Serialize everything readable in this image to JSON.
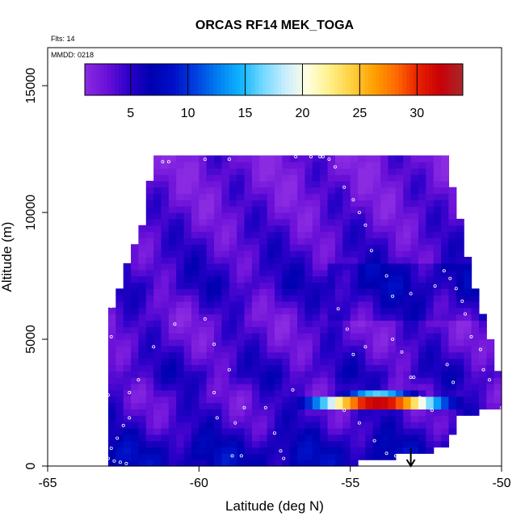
{
  "chart_data": {
    "type": "heatmap",
    "title": "ORCAS RF14 MEK_TOGA",
    "flights_label": "Flts: 14",
    "date_label": "MMDD: 0218",
    "xlabel": "Latitude (deg N)",
    "ylabel": "Altitude (m)",
    "xlim": [
      -65,
      -50
    ],
    "ylim": [
      0,
      16500
    ],
    "x_ticks": [
      -65,
      -60,
      -55,
      -50
    ],
    "x_tick_labels": [
      "-65",
      "-60",
      "-55",
      "-50"
    ],
    "y_ticks": [
      0,
      5000,
      10000,
      15000
    ],
    "y_tick_labels": [
      "0",
      "5000",
      "10000",
      "15000"
    ],
    "colorbar": {
      "range": [
        1,
        34
      ],
      "ticks": [
        5,
        10,
        15,
        20,
        25,
        30
      ],
      "tick_labels": [
        "5",
        "10",
        "15",
        "20",
        "25",
        "30"
      ],
      "colors": [
        "#8a2be2",
        "#6a10d8",
        "#2a00c8",
        "#0000b0",
        "#0010c8",
        "#0040e0",
        "#0080f0",
        "#10b4ff",
        "#70d8ff",
        "#c8ecff",
        "#ffffe0",
        "#fff08a",
        "#ffd040",
        "#ffa000",
        "#ff6a00",
        "#e82000",
        "#c80008",
        "#a82828"
      ]
    },
    "grid": false,
    "field": {
      "columns": [
        {
          "lat": -63.0,
          "bottom": 0,
          "top": 6400
        },
        {
          "lat": -62.5,
          "bottom": 0,
          "top": 8000
        },
        {
          "lat": -62.0,
          "bottom": 0,
          "top": 9500
        },
        {
          "lat": -61.6,
          "bottom": 0,
          "top": 12300
        },
        {
          "lat": -55.0,
          "bottom": 0,
          "top": 12300
        },
        {
          "lat": -52.0,
          "bottom": 600,
          "top": 12400
        },
        {
          "lat": -51.5,
          "bottom": 1800,
          "top": 9800
        },
        {
          "lat": -51.0,
          "bottom": 2000,
          "top": 7000
        },
        {
          "lat": -50.5,
          "bottom": 2100,
          "top": 5000
        },
        {
          "lat": -50.0,
          "bottom": 2200,
          "top": 2500
        }
      ],
      "bands": [
        {
          "alt": 11500,
          "value": 2.5
        },
        {
          "alt": 10000,
          "value": 3
        },
        {
          "alt": 8500,
          "value": 4
        },
        {
          "alt": 7000,
          "value": 5
        },
        {
          "alt": 5700,
          "value": 3
        },
        {
          "alt": 4700,
          "value": 3.5
        },
        {
          "alt": 3500,
          "value": 5
        },
        {
          "alt": 2600,
          "value": 3.5
        },
        {
          "alt": 1500,
          "value": 4.5
        },
        {
          "alt": 400,
          "value": 7
        }
      ],
      "hot_layer": {
        "alt_from": 2100,
        "alt_to": 2800,
        "lat_from": -57.0,
        "lat_to": -50.0,
        "peak_lat": -54.2,
        "peak_value": 32
      }
    },
    "track_points": [
      [
        -61.8,
        12000
      ],
      [
        -61.6,
        12000
      ],
      [
        -61.2,
        12000
      ],
      [
        -61.0,
        12000
      ],
      [
        -59.8,
        12100
      ],
      [
        -59.0,
        12100
      ],
      [
        -56.8,
        12200
      ],
      [
        -56.3,
        12200
      ],
      [
        -56.0,
        12200
      ],
      [
        -55.9,
        12200
      ],
      [
        -55.7,
        12100
      ],
      [
        -55.5,
        11800
      ],
      [
        -55.2,
        11000
      ],
      [
        -54.9,
        10500
      ],
      [
        -54.7,
        10000
      ],
      [
        -54.5,
        9500
      ],
      [
        -54.3,
        8500
      ],
      [
        -53.8,
        7500
      ],
      [
        -53.6,
        6700
      ],
      [
        -53.0,
        6800
      ],
      [
        -52.2,
        7100
      ],
      [
        -51.9,
        7700
      ],
      [
        -51.7,
        7400
      ],
      [
        -51.5,
        7000
      ],
      [
        -51.3,
        6500
      ],
      [
        -51.2,
        6000
      ],
      [
        -51.0,
        5100
      ],
      [
        -50.7,
        4600
      ],
      [
        -50.6,
        3800
      ],
      [
        -50.4,
        3400
      ],
      [
        -50.0,
        2300
      ],
      [
        -52.3,
        2200
      ],
      [
        -53.0,
        3500
      ],
      [
        -53.3,
        4500
      ],
      [
        -53.6,
        5000
      ],
      [
        -54.5,
        4700
      ],
      [
        -54.9,
        4400
      ],
      [
        -55.1,
        5400
      ],
      [
        -55.4,
        6200
      ],
      [
        -55.2,
        2200
      ],
      [
        -54.7,
        1700
      ],
      [
        -54.2,
        1000
      ],
      [
        -53.8,
        500
      ],
      [
        -53.5,
        400
      ],
      [
        -53.3,
        400
      ],
      [
        -53.1,
        400
      ],
      [
        -57.5,
        1300
      ],
      [
        -57.3,
        600
      ],
      [
        -57.8,
        2300
      ],
      [
        -58.5,
        2300
      ],
      [
        -59.5,
        2900
      ],
      [
        -59.0,
        3800
      ],
      [
        -59.5,
        4800
      ],
      [
        -59.8,
        5800
      ],
      [
        -60.8,
        5600
      ],
      [
        -61.5,
        4700
      ],
      [
        -62.0,
        3400
      ],
      [
        -62.3,
        2900
      ],
      [
        -62.3,
        1900
      ],
      [
        -62.5,
        1600
      ],
      [
        -62.7,
        1100
      ],
      [
        -62.9,
        700
      ],
      [
        -63.0,
        300
      ],
      [
        -62.8,
        200
      ],
      [
        -62.6,
        150
      ],
      [
        -62.4,
        100
      ],
      [
        -62.9,
        5100
      ],
      [
        -63.1,
        4000
      ],
      [
        -63.0,
        2800
      ],
      [
        -62.9,
        6300
      ],
      [
        -58.8,
        1700
      ],
      [
        -59.4,
        1900
      ],
      [
        -56.9,
        3000
      ],
      [
        -58.6,
        400
      ],
      [
        -58.9,
        400
      ],
      [
        -57.2,
        300
      ],
      [
        -52.7,
        2700
      ],
      [
        -52.9,
        3500
      ],
      [
        -51.8,
        4000
      ],
      [
        -51.6,
        3300
      ]
    ],
    "arrow": {
      "lat": -53.0,
      "alt_from": 700,
      "alt_to": 0
    }
  }
}
